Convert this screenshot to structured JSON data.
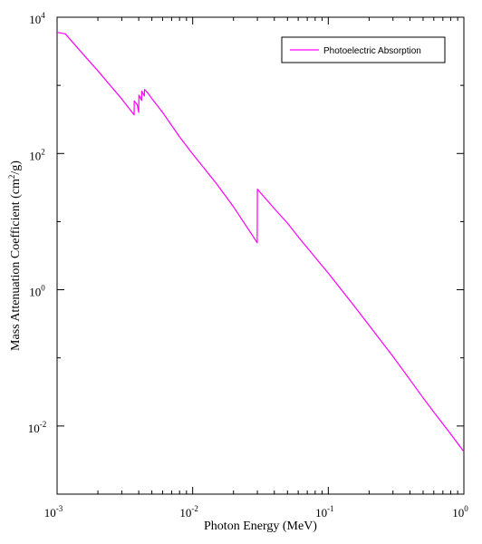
{
  "chart_data": {
    "type": "line",
    "xlabel": "Photon Energy (MeV)",
    "ylabel": "Mass Attenuation Coefficient (cm",
    "ylabel_sup": "2",
    "ylabel_suffix": "/g)",
    "x_scale": "log",
    "y_scale": "log",
    "xlim": [
      0.001,
      1
    ],
    "ylim": [
      0.001,
      10000
    ],
    "grid": false,
    "legend_position": "top-right",
    "x_ticks": [
      {
        "base": "10",
        "exp": "-3",
        "value": 0.001
      },
      {
        "base": "10",
        "exp": "-2",
        "value": 0.01
      },
      {
        "base": "10",
        "exp": "-1",
        "value": 0.1
      },
      {
        "base": "10",
        "exp": "0",
        "value": 1
      }
    ],
    "y_ticks": [
      {
        "base": "10",
        "exp": "-2",
        "value": 0.01
      },
      {
        "base": "10",
        "exp": "0",
        "value": 1
      },
      {
        "base": "10",
        "exp": "2",
        "value": 100
      },
      {
        "base": "10",
        "exp": "4",
        "value": 10000
      }
    ],
    "series": [
      {
        "name": "Photoelectric Absorption",
        "color": "#ff00ff",
        "x": [
          0.001,
          0.00115,
          0.0015,
          0.002,
          0.003,
          0.0037,
          0.00371,
          0.0039,
          0.004,
          0.00401,
          0.0042,
          0.00421,
          0.0044,
          0.00441,
          0.0046,
          0.005,
          0.006,
          0.008,
          0.01,
          0.015,
          0.02,
          0.0299,
          0.03,
          0.04,
          0.05,
          0.06,
          0.08,
          0.1,
          0.15,
          0.2,
          0.3,
          0.4,
          0.5,
          0.6,
          0.8,
          1.0
        ],
        "y": [
          6000,
          5700,
          3100,
          1630,
          630,
          370,
          590,
          520,
          400,
          720,
          600,
          820,
          700,
          870,
          800,
          640,
          400,
          175,
          98,
          36,
          16.5,
          4.9,
          30,
          15.5,
          9.5,
          6.0,
          3.0,
          1.75,
          0.63,
          0.3,
          0.105,
          0.048,
          0.026,
          0.016,
          0.0076,
          0.0042
        ]
      }
    ]
  }
}
